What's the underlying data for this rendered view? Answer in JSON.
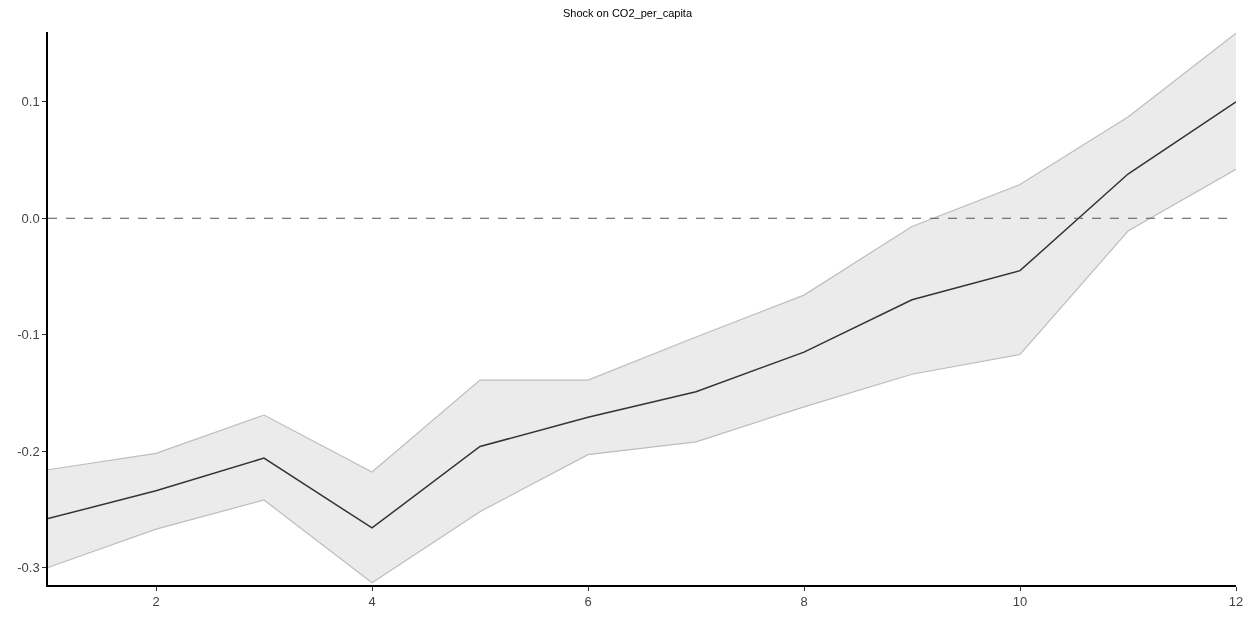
{
  "chart_data": {
    "type": "line",
    "title": "Shock on CO2_per_capita",
    "x": [
      1,
      2,
      3,
      4,
      5,
      6,
      7,
      8,
      9,
      10,
      11,
      12
    ],
    "series": [
      {
        "color": "#333333",
        "values": [
          -0.258,
          -0.234,
          -0.206,
          -0.266,
          -0.196,
          -0.171,
          -0.149,
          -0.115,
          -0.07,
          -0.045,
          0.038,
          0.1
        ],
        "lower": [
          -0.3,
          -0.267,
          -0.242,
          -0.313,
          -0.252,
          -0.203,
          -0.192,
          -0.162,
          -0.134,
          -0.117,
          -0.011,
          0.042
        ],
        "upper": [
          -0.216,
          -0.202,
          -0.169,
          -0.218,
          -0.139,
          -0.139,
          -0.102,
          -0.066,
          -0.007,
          0.029,
          0.087,
          0.159
        ]
      },
      {
        "color": "#bdbdbd",
        "values": [
          -0.216,
          -0.202,
          -0.169,
          -0.218,
          -0.139,
          -0.139,
          -0.102,
          -0.066,
          -0.007,
          0.029,
          0.087,
          0.159
        ]
      },
      {
        "color": "#bdbdbd",
        "values": [
          -0.3,
          -0.267,
          -0.242,
          -0.313,
          -0.252,
          -0.203,
          -0.192,
          -0.162,
          -0.134,
          -0.117,
          -0.011,
          0.042
        ]
      }
    ],
    "xlim": [
      1,
      12
    ],
    "xticks": [
      2,
      4,
      6,
      8,
      10,
      12
    ],
    "ylim": [
      -0.315,
      0.16
    ],
    "yticks": [
      {
        "value": -0.3,
        "label": "-0.3"
      },
      {
        "value": -0.2,
        "label": "-0.2"
      },
      {
        "value": -0.1,
        "label": "-0.1"
      },
      {
        "value": 0,
        "label": "0.0"
      },
      {
        "value": 0.1,
        "label": "0.1"
      }
    ],
    "ref_lines": [
      {
        "axis": "y",
        "value": 0,
        "color": "#555555",
        "line_style": "dashed"
      }
    ],
    "marker": "none",
    "line_style": "solid"
  }
}
